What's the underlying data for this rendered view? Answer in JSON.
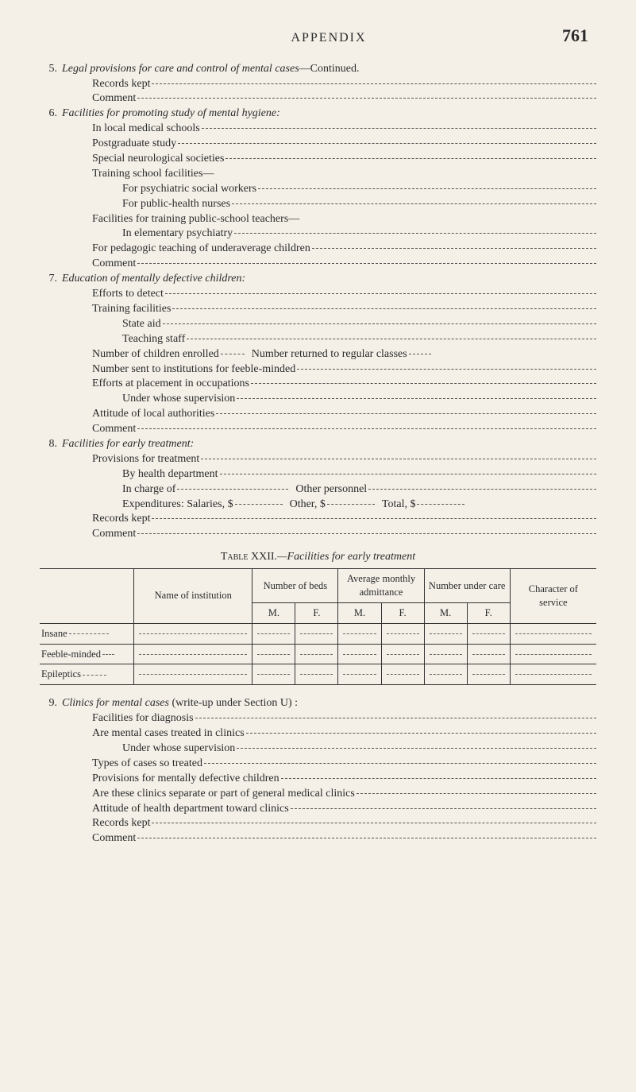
{
  "header": {
    "title": "APPENDIX",
    "page": "761"
  },
  "sections": [
    {
      "num": "5.",
      "title": "Legal provisions for care and control of mental cases",
      "title_suffix": "—Continued.",
      "lines": [
        {
          "indent": 2,
          "text": "Records kept",
          "dash": true
        },
        {
          "indent": 2,
          "text": "Comment",
          "dash": true
        }
      ]
    },
    {
      "num": "6.",
      "title": "Facilities for promoting study of mental hygiene:",
      "lines": [
        {
          "indent": 2,
          "text": "In local medical schools",
          "dash": true
        },
        {
          "indent": 2,
          "text": "Postgraduate study",
          "dash": true
        },
        {
          "indent": 2,
          "text": "Special neurological societies",
          "dash": true
        },
        {
          "indent": 2,
          "text": "Training school facilities—"
        },
        {
          "indent": 3,
          "text": "For psychiatric social workers",
          "dash": true
        },
        {
          "indent": 3,
          "text": "For public-health nurses",
          "dash": true
        },
        {
          "indent": 2,
          "text": "Facilities for training public-school teachers—"
        },
        {
          "indent": 3,
          "text": "In elementary psychiatry",
          "dash": true
        },
        {
          "indent": 2,
          "text": "For pedagogic teaching of underaverage children",
          "dash": true
        },
        {
          "indent": 2,
          "text": "Comment",
          "dash": true
        }
      ]
    },
    {
      "num": "7.",
      "title": "Education of mentally defective children:",
      "lines": [
        {
          "indent": 2,
          "text": "Efforts to detect",
          "dash": true
        },
        {
          "indent": 2,
          "text": "Training facilities",
          "dash": true
        },
        {
          "indent": 3,
          "text": "State aid",
          "dash": true
        },
        {
          "indent": 3,
          "text": "Teaching staff",
          "dash": true
        },
        {
          "indent": 2,
          "special": "num_children"
        },
        {
          "indent": 2,
          "text": "Number sent to institutions for feeble-minded",
          "dash": true
        },
        {
          "indent": 2,
          "text": "Efforts at placement in occupations",
          "dash": true
        },
        {
          "indent": 3,
          "text": "Under whose supervision",
          "dash": true
        },
        {
          "indent": 2,
          "text": "Attitude of local authorities",
          "dash": true
        },
        {
          "indent": 2,
          "text": "Comment",
          "dash": true
        }
      ]
    },
    {
      "num": "8.",
      "title": "Facilities for early treatment:",
      "lines": [
        {
          "indent": 2,
          "text": "Provisions for treatment",
          "dash": true
        },
        {
          "indent": 3,
          "text": "By health department",
          "dash": true
        },
        {
          "indent": 3,
          "special": "in_charge"
        },
        {
          "indent": 3,
          "special": "expenditures"
        },
        {
          "indent": 2,
          "text": "Records kept",
          "dash": true
        },
        {
          "indent": 2,
          "text": "Comment",
          "dash": true
        }
      ]
    }
  ],
  "special_strings": {
    "num_children_a": "Number of children enrolled",
    "num_children_b": "Number returned to regular classes",
    "in_charge_a": "In charge of",
    "in_charge_b": "Other personnel",
    "exp_a": "Expenditures: Salaries, $",
    "exp_b": "Other, $",
    "exp_c": "Total, $"
  },
  "table_caption": {
    "label": "Table XXII.",
    "title": "—Facilities for early treatment"
  },
  "table": {
    "col_headers": {
      "name": "Name of institution",
      "beds": "Number of beds",
      "avg": "Average monthly admittance",
      "under": "Number under care",
      "char": "Character of service",
      "m": "M.",
      "f": "F."
    },
    "rows": [
      "Insane",
      "Feeble-minded",
      "Epileptics"
    ]
  },
  "section9": {
    "num": "9.",
    "title": "Clinics for mental cases",
    "title_suffix": " (write-up under Section U) :",
    "lines": [
      {
        "indent": 2,
        "text": "Facilities for diagnosis",
        "dash": true
      },
      {
        "indent": 2,
        "text": "Are mental cases treated in clinics",
        "dash": true
      },
      {
        "indent": 3,
        "text": "Under whose supervision",
        "dash": true
      },
      {
        "indent": 2,
        "text": "Types of cases so treated",
        "dash": true
      },
      {
        "indent": 2,
        "text": "Provisions for mentally defective children",
        "dash": true
      },
      {
        "indent": 2,
        "text": "Are these clinics separate or part of general medical clinics",
        "dash": true
      },
      {
        "indent": 2,
        "text": "Attitude of health department toward clinics",
        "dash": true
      },
      {
        "indent": 2,
        "text": "Records kept",
        "dash": true
      },
      {
        "indent": 2,
        "text": "Comment",
        "dash": true
      }
    ]
  }
}
